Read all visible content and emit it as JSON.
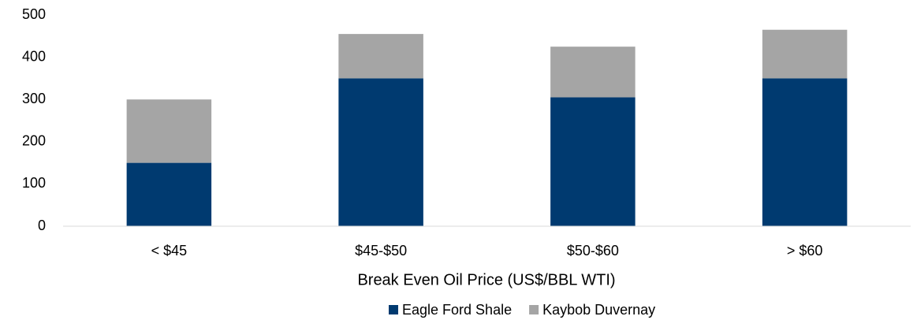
{
  "chart_data": {
    "type": "stacked_bar",
    "categories": [
      "< $45",
      "$45-$50",
      "$50-$60",
      "> $60"
    ],
    "series": [
      {
        "name": "Eagle Ford Shale",
        "color": "#003a70",
        "values": [
          150,
          350,
          305,
          350
        ]
      },
      {
        "name": "Kaybob Duvernay",
        "color": "#a5a5a5",
        "values": [
          150,
          105,
          120,
          115
        ]
      }
    ],
    "xlabel": "Break Even Oil Price (US$/BBL WTI)",
    "ylim": [
      0,
      500
    ],
    "yticks": [
      0,
      100,
      200,
      300,
      400,
      500
    ],
    "grid": false,
    "legend": "bottom"
  }
}
